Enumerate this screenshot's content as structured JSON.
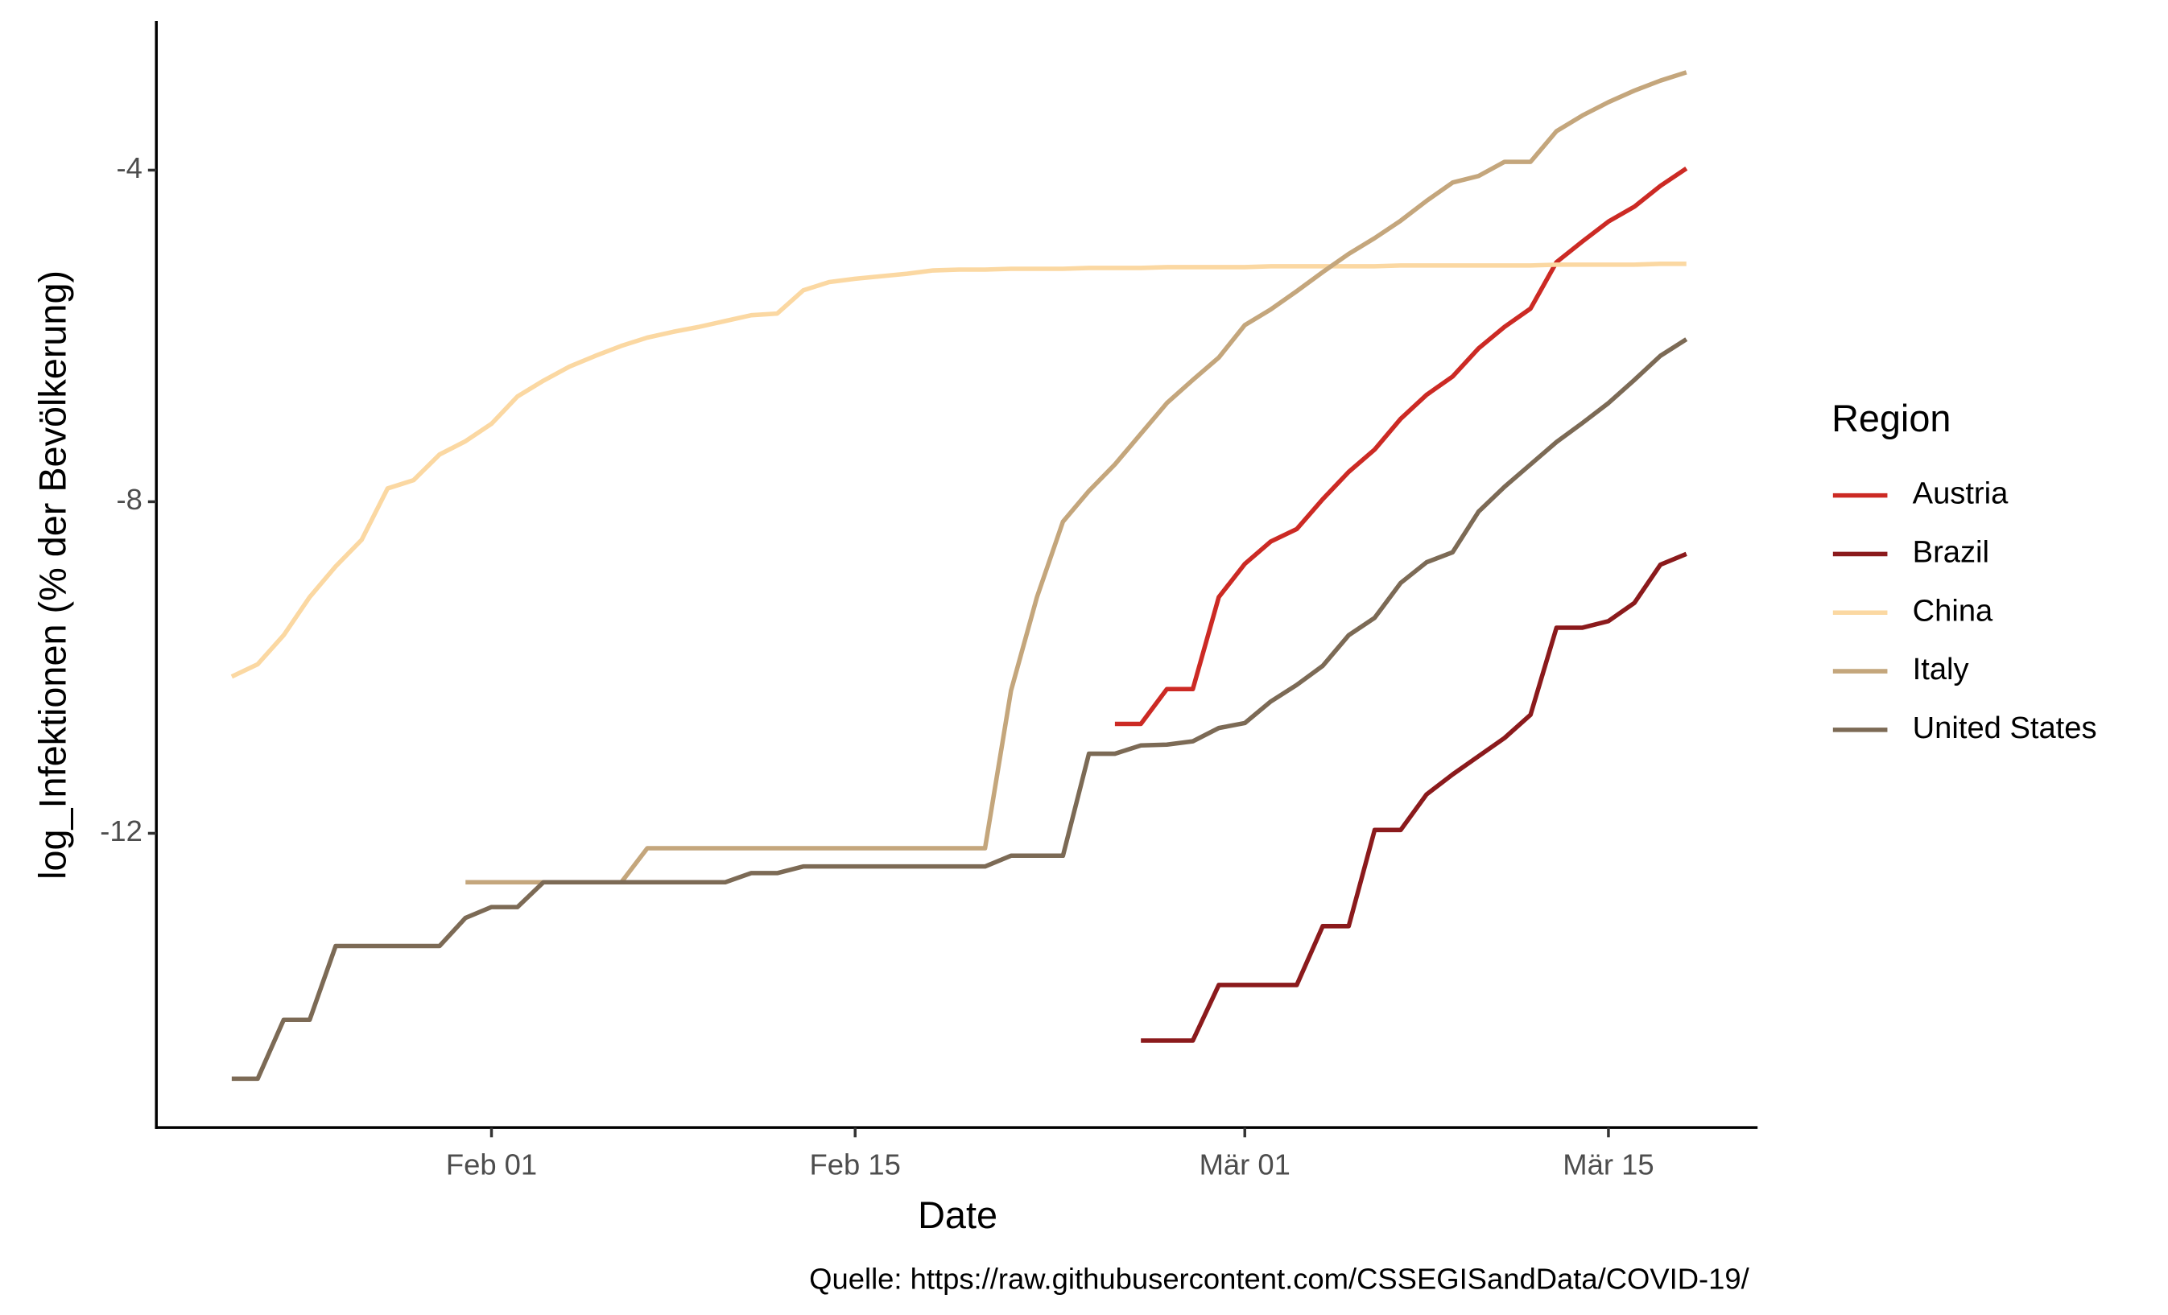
{
  "chart_data": {
    "type": "line",
    "x_label": "Date",
    "y_label": "log_Infektionen (% der Bevölkerung)",
    "caption": "Quelle: https://raw.githubusercontent.com/CSSEGISandData/COVID-19/",
    "legend_title": "Region",
    "legend_position": "right",
    "grid": false,
    "x": [
      "Jan 22",
      "Jan 23",
      "Jan 24",
      "Jan 25",
      "Jan 26",
      "Jan 27",
      "Jan 28",
      "Jan 29",
      "Jan 30",
      "Jan 31",
      "Feb 01",
      "Feb 02",
      "Feb 03",
      "Feb 04",
      "Feb 05",
      "Feb 06",
      "Feb 07",
      "Feb 08",
      "Feb 09",
      "Feb 10",
      "Feb 11",
      "Feb 12",
      "Feb 13",
      "Feb 14",
      "Feb 15",
      "Feb 16",
      "Feb 17",
      "Feb 18",
      "Feb 19",
      "Feb 20",
      "Feb 21",
      "Feb 22",
      "Feb 23",
      "Feb 24",
      "Feb 25",
      "Feb 26",
      "Feb 27",
      "Feb 28",
      "Feb 29",
      "Mär 01",
      "Mär 02",
      "Mär 03",
      "Mär 04",
      "Mär 05",
      "Mär 06",
      "Mär 07",
      "Mär 08",
      "Mär 09",
      "Mär 10",
      "Mär 11",
      "Mär 12",
      "Mär 13",
      "Mär 14",
      "Mär 15",
      "Mär 16",
      "Mär 17",
      "Mär 18"
    ],
    "xticks": [
      "Feb 01",
      "Feb 15",
      "Mär 01",
      "Mär 15"
    ],
    "ylim": [
      -15.55,
      -2.2
    ],
    "yticks": [
      -12,
      -8,
      -4
    ],
    "series": [
      {
        "name": "Austria",
        "color": "#cc2a24",
        "values": [
          null,
          null,
          null,
          null,
          null,
          null,
          null,
          null,
          null,
          null,
          null,
          null,
          null,
          null,
          null,
          null,
          null,
          null,
          null,
          null,
          null,
          null,
          null,
          null,
          null,
          null,
          null,
          null,
          null,
          null,
          null,
          null,
          null,
          null,
          -10.68,
          -10.68,
          -10.26,
          -10.26,
          -9.15,
          -8.75,
          -8.48,
          -8.33,
          -7.97,
          -7.64,
          -7.37,
          -7.0,
          -6.71,
          -6.49,
          -6.15,
          -5.89,
          -5.67,
          -5.11,
          -4.86,
          -4.62,
          -4.44,
          -4.19,
          -3.98
        ]
      },
      {
        "name": "Brazil",
        "color": "#8b1a1c",
        "values": [
          null,
          null,
          null,
          null,
          null,
          null,
          null,
          null,
          null,
          null,
          null,
          null,
          null,
          null,
          null,
          null,
          null,
          null,
          null,
          null,
          null,
          null,
          null,
          null,
          null,
          null,
          null,
          null,
          null,
          null,
          null,
          null,
          null,
          null,
          null,
          -14.5,
          -14.5,
          -14.5,
          -13.83,
          -13.83,
          -13.83,
          -13.83,
          -13.12,
          -13.12,
          -11.96,
          -11.96,
          -11.53,
          -11.29,
          -11.07,
          -10.85,
          -10.57,
          -9.52,
          -9.52,
          -9.44,
          -9.22,
          -8.76,
          -8.63
        ]
      },
      {
        "name": "China",
        "color": "#fbd8a2",
        "values": [
          -10.11,
          -9.96,
          -9.61,
          -9.15,
          -8.78,
          -8.46,
          -7.84,
          -7.74,
          -7.43,
          -7.27,
          -7.06,
          -6.73,
          -6.54,
          -6.37,
          -6.24,
          -6.12,
          -6.02,
          -5.95,
          -5.89,
          -5.82,
          -5.75,
          -5.73,
          -5.45,
          -5.35,
          -5.31,
          -5.28,
          -5.25,
          -5.21,
          -5.2,
          -5.2,
          -5.19,
          -5.19,
          -5.19,
          -5.18,
          -5.18,
          -5.18,
          -5.17,
          -5.17,
          -5.17,
          -5.17,
          -5.16,
          -5.16,
          -5.16,
          -5.16,
          -5.16,
          -5.15,
          -5.15,
          -5.15,
          -5.15,
          -5.15,
          -5.15,
          -5.14,
          -5.14,
          -5.14,
          -5.14,
          -5.13,
          -5.13
        ]
      },
      {
        "name": "Italy",
        "color": "#c4a67c",
        "values": [
          null,
          null,
          null,
          null,
          null,
          null,
          null,
          null,
          null,
          -12.59,
          -12.59,
          -12.59,
          -12.59,
          -12.59,
          -12.59,
          -12.59,
          -12.18,
          -12.18,
          -12.18,
          -12.18,
          -12.18,
          -12.18,
          -12.18,
          -12.18,
          -12.18,
          -12.18,
          -12.18,
          -12.18,
          -12.18,
          -12.18,
          -10.28,
          -9.15,
          -8.24,
          -7.87,
          -7.55,
          -7.18,
          -6.81,
          -6.53,
          -6.26,
          -5.87,
          -5.68,
          -5.46,
          -5.23,
          -5.01,
          -4.82,
          -4.61,
          -4.37,
          -4.15,
          -4.07,
          -3.9,
          -3.9,
          -3.53,
          -3.34,
          -3.18,
          -3.04,
          -2.92,
          -2.82
        ]
      },
      {
        "name": "United States",
        "color": "#7c6a55",
        "values": [
          -14.96,
          -14.96,
          -14.25,
          -14.25,
          -13.36,
          -13.36,
          -13.36,
          -13.36,
          -13.36,
          -13.02,
          -12.89,
          -12.89,
          -12.59,
          -12.59,
          -12.59,
          -12.59,
          -12.59,
          -12.59,
          -12.59,
          -12.59,
          -12.48,
          -12.48,
          -12.4,
          -12.4,
          -12.4,
          -12.4,
          -12.4,
          -12.4,
          -12.4,
          -12.4,
          -12.27,
          -12.27,
          -12.27,
          -11.04,
          -11.04,
          -10.94,
          -10.93,
          -10.89,
          -10.73,
          -10.67,
          -10.41,
          -10.21,
          -9.98,
          -9.61,
          -9.4,
          -8.98,
          -8.73,
          -8.61,
          -8.12,
          -7.82,
          -7.55,
          -7.28,
          -7.05,
          -6.81,
          -6.53,
          -6.24,
          -6.04
        ]
      }
    ]
  }
}
